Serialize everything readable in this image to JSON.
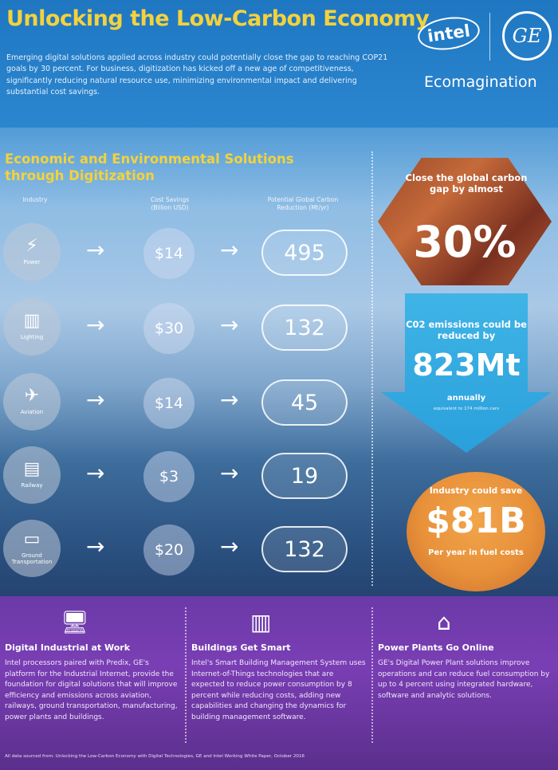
{
  "header": {
    "title": "Unlocking the Low-Carbon Economy",
    "intro": "Emerging digital solutions applied across industry could potentially close the gap to reaching COP21 goals by 30 percent. For business, digitization has kicked off a new age of competitiveness, significantly reducing natural resource use, minimizing environmental impact and delivering substantial cost savings.",
    "brand_intel": "intel",
    "brand_ge": "GE",
    "brand_eco": "Ecomagination"
  },
  "section": {
    "title": "Economic and Environmental Solutions through Digitization",
    "col_industry": "Industry",
    "col_cost": "Cost Savings (Billion USD)",
    "col_carbon": "Potential Global Carbon Reduction (Mt/yr)"
  },
  "rows": [
    {
      "industry": "Power",
      "icon": "lightning-icon",
      "glyph": "⚡",
      "cost": "$14",
      "carbon": "495"
    },
    {
      "industry": "Lighting",
      "icon": "building-icon",
      "glyph": "▥",
      "cost": "$30",
      "carbon": "132"
    },
    {
      "industry": "Aviation",
      "icon": "airplane-icon",
      "glyph": "✈",
      "cost": "$14",
      "carbon": "45"
    },
    {
      "industry": "Railway",
      "icon": "train-icon",
      "glyph": "▤",
      "cost": "$3",
      "carbon": "19"
    },
    {
      "industry": "Ground Transportation",
      "icon": "car-icon",
      "glyph": "▭",
      "cost": "$20",
      "carbon": "132"
    }
  ],
  "arrow_glyph": "→",
  "stats": {
    "hex_text": "Close the global carbon gap by almost",
    "hex_big": "30%",
    "arrow_text1": "C02 emissions could be reduced by",
    "arrow_big": "823Mt",
    "arrow_text2": "annually",
    "arrow_text3": "equivalent to 174 million cars",
    "circle_text1": "Industry could save",
    "circle_big": "$81B",
    "circle_text2": "Per year in fuel costs"
  },
  "bottom": [
    {
      "icon": "devices-icon",
      "glyph": "🖥",
      "heading": "Digital Industrial at Work",
      "body": "Intel processors paired with Predix, GE's platform for the Industrial Internet, provide the foundation for digital solutions that will improve efficiency and emissions across aviation, railways, ground transportation, manufacturing, power plants and buildings."
    },
    {
      "icon": "buildings-icon",
      "glyph": "▥",
      "heading": "Buildings Get Smart",
      "body": "Intel's Smart Building Management System uses Internet-of-Things technologies that are expected to reduce power consumption by 8 percent while reducing costs, adding new capabilities and changing the dynamics for building management software."
    },
    {
      "icon": "factory-icon",
      "glyph": "⌂",
      "heading": "Power Plants Go Online",
      "body": "GE's Digital Power Plant solutions improve operations and can reduce fuel consumption by up to 4 percent using integrated hardware, software and analytic solutions."
    }
  ],
  "footer": "All data sourced from: Unlocking the Low-Carbon Economy with Digital Technologies, GE and Intel Working White Paper, October 2016"
}
